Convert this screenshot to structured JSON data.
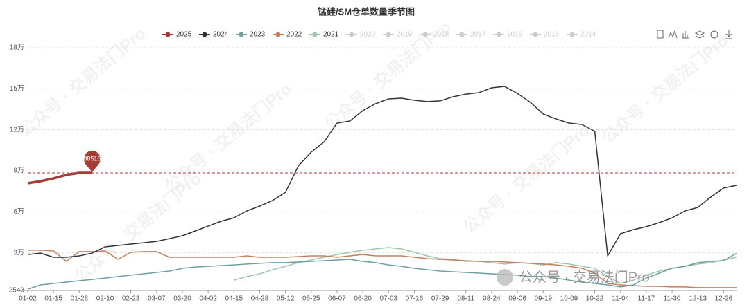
{
  "chart_data": {
    "type": "line",
    "title": "锰硅/SM仓单数量季节图",
    "categories": [
      "01-02",
      null,
      "01-15",
      null,
      "01-28",
      null,
      "02-10",
      null,
      "02-23",
      null,
      "03-07",
      null,
      "03-20",
      null,
      "04-02",
      null,
      "04-15",
      null,
      "04-28",
      null,
      "05-12",
      null,
      "05-25",
      null,
      "06-07",
      null,
      "06-20",
      null,
      "07-03",
      null,
      "07-16",
      null,
      "07-29",
      null,
      "08-11",
      null,
      "08-24",
      null,
      "09-06",
      null,
      "09-19",
      null,
      "10-09",
      null,
      "10-22",
      null,
      "11-04",
      null,
      "11-17",
      null,
      "11-30",
      null,
      "12-13",
      null,
      "12-26",
      null
    ],
    "series": [
      {
        "name": "2025",
        "color": "#a63c36",
        "width": 3.5,
        "values": [
          80900,
          82400,
          84500,
          87000,
          88500,
          88516,
          null,
          null,
          null,
          null,
          null,
          null,
          null,
          null,
          null,
          null,
          null,
          null,
          null,
          null,
          null,
          null,
          null,
          null,
          null,
          null,
          null,
          null,
          null,
          null,
          null,
          null,
          null,
          null,
          null,
          null,
          null,
          null,
          null,
          null,
          null,
          null,
          null,
          null,
          null,
          null,
          null,
          null,
          null,
          null,
          null,
          null,
          null,
          null,
          null,
          null
        ]
      },
      {
        "name": "2024",
        "color": "#2f353d",
        "width": 1.5,
        "values": [
          28800,
          29800,
          26800,
          26800,
          27800,
          29800,
          34400,
          35400,
          36400,
          37400,
          38400,
          40400,
          42500,
          46000,
          49500,
          53100,
          55600,
          60700,
          64200,
          68300,
          74300,
          93600,
          103700,
          111200,
          124900,
          126400,
          134000,
          139100,
          142600,
          143100,
          141600,
          140600,
          141100,
          144100,
          146100,
          147100,
          150700,
          151700,
          146600,
          140100,
          131500,
          127900,
          124900,
          123900,
          118900,
          27800,
          44000,
          47000,
          49100,
          52100,
          55600,
          60700,
          63200,
          70800,
          77400,
          79400
        ]
      },
      {
        "name": "2023",
        "color": "#6f9ea2",
        "width": 1.5,
        "values": [
          3500,
          6600,
          7600,
          8600,
          9600,
          10600,
          11600,
          12700,
          13700,
          14700,
          15700,
          16700,
          18700,
          19700,
          20200,
          20700,
          21200,
          21800,
          22300,
          22800,
          22800,
          23300,
          23800,
          24300,
          24800,
          25300,
          23800,
          22800,
          21200,
          20200,
          18700,
          17700,
          16700,
          16200,
          15700,
          15200,
          14700,
          14200,
          13700,
          12700,
          12700,
          11600,
          10100,
          8600,
          7600,
          6600,
          5100,
          6600,
          11600,
          15200,
          18700,
          20200,
          22800,
          23800,
          24300,
          29800
        ]
      },
      {
        "name": "2022",
        "color": "#c2805f",
        "width": 1.5,
        "values": [
          31900,
          31900,
          31400,
          23800,
          30900,
          30900,
          31400,
          25300,
          30400,
          30900,
          30900,
          26800,
          26800,
          26800,
          26800,
          26800,
          26800,
          27800,
          26800,
          26800,
          26800,
          27300,
          27800,
          27800,
          26800,
          27800,
          28800,
          27800,
          27800,
          27800,
          26800,
          25800,
          25300,
          24800,
          24300,
          23800,
          23800,
          23300,
          22800,
          22300,
          21800,
          21200,
          20200,
          18700,
          15200,
          7600,
          6600,
          6100,
          5600,
          5600,
          5100,
          5100,
          4600,
          4600,
          4600,
          4600
        ]
      },
      {
        "name": "2021",
        "color": "#9fc7ad",
        "width": 1.5,
        "values": [
          null,
          null,
          null,
          null,
          null,
          null,
          null,
          null,
          null,
          null,
          null,
          null,
          null,
          null,
          null,
          null,
          10100,
          12700,
          14700,
          17700,
          20200,
          22800,
          24800,
          26800,
          28800,
          30400,
          31900,
          32900,
          33900,
          32900,
          30400,
          27800,
          25800,
          25300,
          23800,
          23800,
          22800,
          21800,
          22800,
          22300,
          21200,
          22800,
          21800,
          20200,
          18700,
          12700,
          7600,
          10100,
          13700,
          16700,
          18700,
          20200,
          21800,
          22800,
          24800,
          26800
        ]
      }
    ],
    "inactive_legend": [
      "2020",
      "2019",
      "2018",
      "2017",
      "2016",
      "2015",
      "2014"
    ],
    "ylim": [
      2543,
      180000
    ],
    "yticks": [
      2543,
      {
        "value": 30000,
        "label": "3万"
      },
      {
        "value": 60000,
        "label": "6万"
      },
      {
        "value": 90000,
        "label": "9万"
      },
      {
        "value": 120000,
        "label": "12万"
      },
      {
        "value": 150000,
        "label": "15万"
      },
      {
        "value": 180000,
        "label": "18万"
      }
    ],
    "grid": true,
    "mark_point_series": 0,
    "mark_point_index": 5,
    "watermark": "公众号 · 交易法门Pro"
  }
}
